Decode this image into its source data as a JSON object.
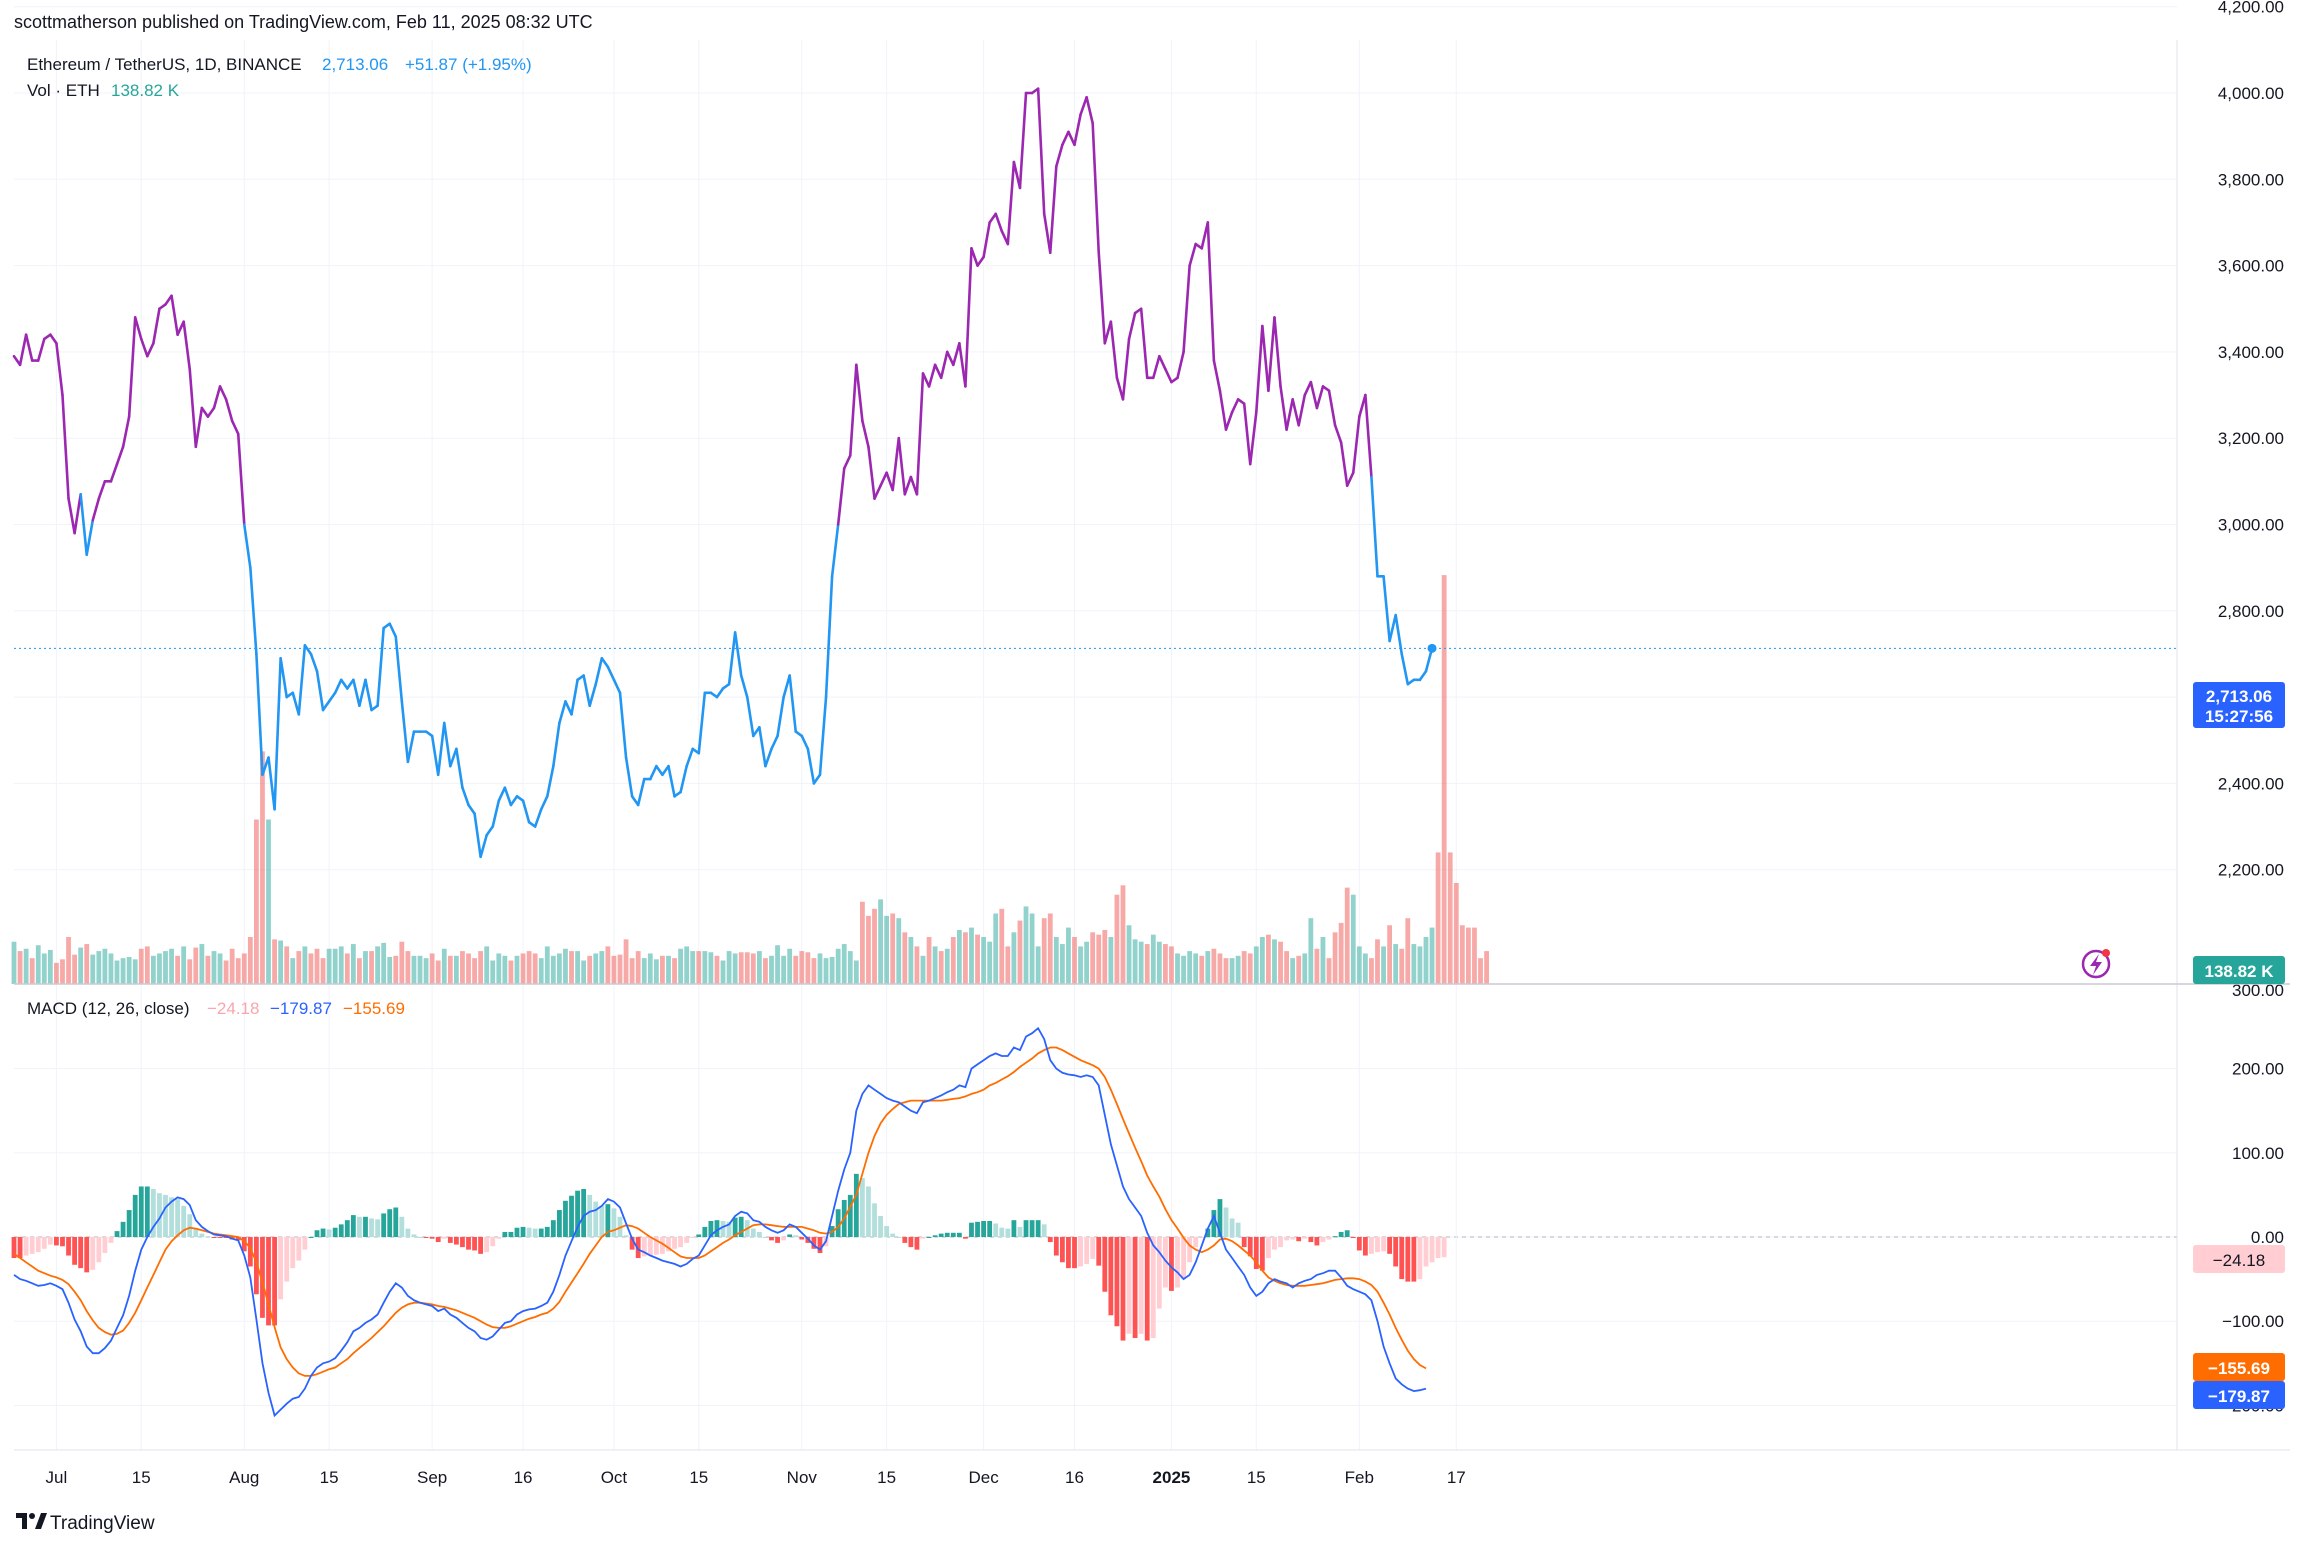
{
  "header": {
    "published": "scottmatherson published on TradingView.com, Feb 11, 2025 08:32 UTC",
    "symbol": "Ethereum / TetherUS, 1D, BINANCE",
    "last": "2,713.06",
    "change": "+51.87 (+1.95%)",
    "vol_label": "Vol · ETH",
    "vol_value": "138.82 K"
  },
  "macd_legend": {
    "label": "MACD (12, 26, close)",
    "hist": "−24.18",
    "macd": "−179.87",
    "signal": "−155.69"
  },
  "price_badge": {
    "price": "2,713.06",
    "countdown": "15:27:56"
  },
  "vol_badge": "138.82 K",
  "macd_badges": {
    "hist": "−24.18",
    "signal": "−155.69",
    "macd": "−179.87"
  },
  "footer": {
    "brand": "TradingView"
  },
  "colors": {
    "up": "#26a69a",
    "down": "#ef5350",
    "line_low": "#2196f3",
    "line_high": "#9c27b0",
    "macd": "#2962ff",
    "signal": "#ff6d00",
    "hist_pos": "#26a69a",
    "hist_pos_light": "#b2dfdb",
    "hist_neg": "#ff5252",
    "hist_neg_light": "#ffcdd2"
  },
  "chart_data": {
    "type": "line",
    "start_date": "2024-06-24",
    "y_ticks": [
      2200,
      2400,
      2600,
      2800,
      3000,
      3200,
      3400,
      3600,
      3800,
      4000,
      4200
    ],
    "y_tick_labels": [
      "2,200.00",
      "2,400.00",
      "2,600.00",
      "2,800.00",
      "3,000.00",
      "3,200.00",
      "3,400.00",
      "3,600.00",
      "3,800.00",
      "4,000.00",
      "4,200.00"
    ],
    "macd_ticks": [
      -200,
      -100,
      0,
      100,
      200,
      300
    ],
    "macd_tick_labels": [
      "−200.00",
      "−100.00",
      "0.00",
      "100.00",
      "200.00",
      "300.00"
    ],
    "x_ticks": [
      {
        "label": "Jul",
        "date": "2024-07-01"
      },
      {
        "label": "15",
        "date": "2024-07-15"
      },
      {
        "label": "Aug",
        "date": "2024-08-01"
      },
      {
        "label": "15",
        "date": "2024-08-15"
      },
      {
        "label": "Sep",
        "date": "2024-09-01"
      },
      {
        "label": "16",
        "date": "2024-09-16"
      },
      {
        "label": "Oct",
        "date": "2024-10-01"
      },
      {
        "label": "15",
        "date": "2024-10-15"
      },
      {
        "label": "Nov",
        "date": "2024-11-01"
      },
      {
        "label": "15",
        "date": "2024-11-15"
      },
      {
        "label": "Dec",
        "date": "2024-12-01"
      },
      {
        "label": "16",
        "date": "2024-12-16"
      },
      {
        "label": "2025",
        "date": "2025-01-01"
      },
      {
        "label": "15",
        "date": "2025-01-15"
      },
      {
        "label": "Feb",
        "date": "2025-02-01"
      },
      {
        "label": "17",
        "date": "2025-02-17"
      }
    ],
    "series": [
      {
        "name": "Ethereum / TetherUS",
        "values": [
          3390,
          3370,
          3440,
          3380,
          3380,
          3430,
          3440,
          3420,
          3300,
          3060,
          2980,
          3070,
          2930,
          3010,
          3060,
          3100,
          3100,
          3140,
          3180,
          3250,
          3480,
          3430,
          3390,
          3420,
          3500,
          3510,
          3530,
          3440,
          3470,
          3360,
          3180,
          3270,
          3250,
          3270,
          3320,
          3290,
          3240,
          3210,
          3000,
          2900,
          2700,
          2420,
          2460,
          2340,
          2690,
          2600,
          2610,
          2560,
          2720,
          2700,
          2660,
          2570,
          2590,
          2610,
          2640,
          2620,
          2640,
          2580,
          2640,
          2570,
          2580,
          2760,
          2770,
          2740,
          2590,
          2450,
          2520,
          2520,
          2520,
          2510,
          2420,
          2540,
          2440,
          2480,
          2390,
          2350,
          2330,
          2230,
          2280,
          2300,
          2360,
          2390,
          2350,
          2370,
          2360,
          2310,
          2300,
          2340,
          2370,
          2440,
          2540,
          2590,
          2560,
          2640,
          2650,
          2580,
          2630,
          2690,
          2670,
          2640,
          2610,
          2460,
          2370,
          2350,
          2410,
          2410,
          2440,
          2420,
          2440,
          2370,
          2380,
          2440,
          2480,
          2470,
          2610,
          2610,
          2600,
          2620,
          2630,
          2750,
          2650,
          2600,
          2510,
          2530,
          2440,
          2480,
          2510,
          2600,
          2650,
          2520,
          2510,
          2480,
          2400,
          2420,
          2600,
          2880,
          3000,
          3130,
          3160,
          3370,
          3240,
          3180,
          3060,
          3090,
          3120,
          3080,
          3200,
          3070,
          3110,
          3070,
          3350,
          3320,
          3370,
          3340,
          3400,
          3370,
          3420,
          3320,
          3640,
          3600,
          3620,
          3700,
          3720,
          3680,
          3650,
          3840,
          3780,
          4000,
          4000,
          4010,
          3720,
          3630,
          3830,
          3880,
          3910,
          3880,
          3950,
          3990,
          3930,
          3630,
          3420,
          3470,
          3340,
          3290,
          3430,
          3490,
          3500,
          3340,
          3340,
          3390,
          3360,
          3330,
          3340,
          3400,
          3600,
          3650,
          3640,
          3700,
          3380,
          3310,
          3220,
          3260,
          3290,
          3280,
          3140,
          3260,
          3460,
          3310,
          3480,
          3320,
          3220,
          3290,
          3230,
          3300,
          3330,
          3270,
          3320,
          3310,
          3230,
          3190,
          3090,
          3120,
          3250,
          3300,
          3110,
          2880,
          2880,
          2730,
          2790,
          2700,
          2630,
          2640,
          2640,
          2660,
          2713
        ]
      }
    ],
    "volume": {
      "unit": "K ETH",
      "values": [
        180,
        140,
        150,
        110,
        165,
        130,
        145,
        90,
        105,
        200,
        125,
        155,
        170,
        125,
        140,
        150,
        130,
        100,
        110,
        115,
        105,
        150,
        160,
        120,
        130,
        140,
        150,
        120,
        160,
        105,
        155,
        170,
        120,
        140,
        130,
        100,
        150,
        110,
        130,
        200,
        700,
        990,
        700,
        190,
        185,
        160,
        110,
        140,
        160,
        130,
        150,
        110,
        150,
        150,
        160,
        130,
        170,
        110,
        140,
        140,
        160,
        175,
        115,
        120,
        180,
        140,
        120,
        120,
        110,
        130,
        100,
        150,
        120,
        120,
        140,
        130,
        110,
        140,
        160,
        100,
        130,
        120,
        100,
        120,
        130,
        140,
        130,
        110,
        160,
        120,
        130,
        150,
        140,
        140,
        100,
        120,
        130,
        140,
        160,
        120,
        125,
        190,
        110,
        140,
        110,
        130,
        105,
        120,
        120,
        110,
        150,
        160,
        140,
        140,
        140,
        135,
        120,
        100,
        140,
        130,
        135,
        135,
        130,
        140,
        110,
        120,
        165,
        120,
        150,
        120,
        140,
        135,
        110,
        130,
        110,
        115,
        150,
        170,
        140,
        100,
        350,
        290,
        320,
        360,
        290,
        300,
        280,
        220,
        200,
        160,
        120,
        200,
        160,
        140,
        150,
        200,
        230,
        220,
        240,
        210,
        200,
        180,
        300,
        320,
        160,
        220,
        270,
        330,
        300,
        160,
        280,
        300,
        200,
        170,
        240,
        200,
        160,
        180,
        220,
        210,
        230,
        200,
        380,
        420,
        250,
        190,
        180,
        170,
        210,
        180,
        170,
        160,
        130,
        120,
        140,
        130,
        120,
        140,
        150,
        130,
        110,
        110,
        120,
        140,
        130,
        160,
        200,
        210,
        190,
        180,
        140,
        110,
        120,
        130,
        280,
        150,
        200,
        110,
        220,
        260,
        410,
        380,
        160,
        130,
        110,
        190,
        160,
        250,
        170,
        150,
        280,
        170,
        160,
        200,
        240,
        560,
        1740,
        560,
        430,
        250,
        240,
        240,
        110,
        140
      ]
    },
    "macd": [
      -45,
      -50,
      -52,
      -55,
      -58,
      -57,
      -55,
      -58,
      -62,
      -78,
      -98,
      -112,
      -130,
      -138,
      -138,
      -132,
      -123,
      -108,
      -93,
      -70,
      -40,
      -15,
      0,
      12,
      22,
      35,
      42,
      47,
      45,
      38,
      20,
      12,
      7,
      3,
      2,
      1,
      -2,
      -4,
      -22,
      -48,
      -98,
      -150,
      -185,
      -212,
      -205,
      -198,
      -192,
      -190,
      -180,
      -165,
      -155,
      -150,
      -148,
      -144,
      -135,
      -125,
      -112,
      -108,
      -102,
      -98,
      -92,
      -78,
      -65,
      -55,
      -60,
      -70,
      -75,
      -78,
      -80,
      -82,
      -88,
      -85,
      -92,
      -96,
      -102,
      -108,
      -112,
      -120,
      -122,
      -118,
      -110,
      -102,
      -100,
      -92,
      -88,
      -86,
      -85,
      -82,
      -78,
      -65,
      -45,
      -22,
      -5,
      12,
      25,
      30,
      32,
      37,
      45,
      42,
      35,
      16,
      -2,
      -15,
      -18,
      -22,
      -25,
      -28,
      -30,
      -32,
      -35,
      -32,
      -26,
      -22,
      -10,
      2,
      8,
      12,
      15,
      25,
      30,
      28,
      20,
      18,
      12,
      8,
      5,
      8,
      15,
      12,
      5,
      -2,
      -10,
      -15,
      -5,
      25,
      55,
      80,
      100,
      150,
      170,
      180,
      175,
      170,
      165,
      162,
      160,
      155,
      150,
      147,
      160,
      162,
      165,
      168,
      172,
      175,
      180,
      178,
      200,
      205,
      210,
      215,
      218,
      215,
      215,
      225,
      222,
      238,
      242,
      248,
      235,
      210,
      200,
      195,
      193,
      192,
      190,
      192,
      190,
      180,
      145,
      110,
      85,
      60,
      45,
      35,
      25,
      5,
      -10,
      -18,
      -28,
      -36,
      -42,
      -50,
      -45,
      -30,
      -10,
      10,
      25,
      5,
      -15,
      -25,
      -35,
      -45,
      -60,
      -70,
      -65,
      -55,
      -50,
      -53,
      -55,
      -60,
      -55,
      -52,
      -50,
      -45,
      -43,
      -40,
      -40,
      -48,
      -58,
      -62,
      -65,
      -68,
      -75,
      -100,
      -130,
      -150,
      -168,
      -175,
      -180,
      -183,
      -182,
      -180
    ],
    "signal": [
      -20,
      -25,
      -30,
      -35,
      -40,
      -43,
      -46,
      -48,
      -51,
      -56,
      -65,
      -75,
      -88,
      -99,
      -108,
      -113,
      -116,
      -115,
      -111,
      -102,
      -90,
      -75,
      -60,
      -45,
      -30,
      -15,
      -5,
      2,
      8,
      11,
      10,
      8,
      6,
      4,
      3,
      2,
      1,
      0,
      -5,
      -13,
      -30,
      -54,
      -80,
      -107,
      -131,
      -145,
      -155,
      -162,
      -165,
      -165,
      -163,
      -160,
      -157,
      -155,
      -150,
      -145,
      -138,
      -132,
      -126,
      -120,
      -113,
      -106,
      -98,
      -90,
      -84,
      -80,
      -78,
      -78,
      -79,
      -80,
      -82,
      -83,
      -85,
      -87,
      -90,
      -93,
      -96,
      -100,
      -104,
      -107,
      -108,
      -108,
      -106,
      -103,
      -100,
      -97,
      -95,
      -92,
      -90,
      -85,
      -77,
      -65,
      -54,
      -43,
      -32,
      -20,
      -10,
      0,
      6,
      8,
      11,
      14,
      13,
      10,
      5,
      0,
      -4,
      -8,
      -13,
      -18,
      -23,
      -25,
      -25,
      -25,
      -22,
      -17,
      -12,
      -7,
      -3,
      2,
      6,
      10,
      14,
      15,
      15,
      14,
      13,
      12,
      12,
      12,
      12,
      10,
      8,
      5,
      4,
      6,
      12,
      22,
      36,
      50,
      75,
      100,
      120,
      135,
      145,
      152,
      158,
      160,
      162,
      162,
      162,
      162,
      162,
      162,
      163,
      164,
      165,
      167,
      170,
      172,
      175,
      180,
      183,
      187,
      191,
      196,
      202,
      207,
      212,
      218,
      222,
      225,
      225,
      222,
      218,
      214,
      210,
      207,
      204,
      200,
      190,
      175,
      158,
      140,
      123,
      106,
      90,
      73,
      60,
      48,
      33,
      20,
      10,
      -1,
      -10,
      -15,
      -18,
      -15,
      -10,
      -3,
      -2,
      -5,
      -10,
      -16,
      -22,
      -30,
      -40,
      -48,
      -52,
      -55,
      -57,
      -58,
      -58,
      -58,
      -57,
      -56,
      -55,
      -53,
      -51,
      -50,
      -49,
      -49,
      -50,
      -53,
      -57,
      -65,
      -78,
      -92,
      -108,
      -122,
      -135,
      -145,
      -152,
      -156
    ],
    "histogram": [
      -25,
      -25,
      -22,
      -20,
      -18,
      -14,
      -9,
      -10,
      -11,
      -22,
      -33,
      -37,
      -42,
      -39,
      -30,
      -19,
      -7,
      7,
      18,
      32,
      50,
      60,
      60,
      57,
      52,
      50,
      47,
      45,
      37,
      27,
      10,
      4,
      1,
      -1,
      -1,
      -1,
      -3,
      -4,
      -17,
      -35,
      -68,
      -96,
      -105,
      -105,
      -74,
      -53,
      -37,
      -28,
      -15,
      0,
      8,
      10,
      9,
      11,
      15,
      20,
      26,
      24,
      24,
      22,
      21,
      28,
      33,
      35,
      24,
      10,
      3,
      0,
      -1,
      -2,
      -6,
      -2,
      -7,
      -9,
      -12,
      -15,
      -16,
      -20,
      -18,
      -11,
      -2,
      6,
      6,
      11,
      12,
      11,
      10,
      10,
      12,
      20,
      32,
      43,
      49,
      55,
      57,
      50,
      42,
      37,
      39,
      34,
      24,
      2,
      -15,
      -25,
      -23,
      -22,
      -21,
      -20,
      -17,
      -14,
      -12,
      -7,
      -1,
      3,
      12,
      19,
      20,
      19,
      18,
      23,
      24,
      20,
      10,
      6,
      0,
      -4,
      -7,
      -4,
      3,
      2,
      -3,
      -7,
      -14,
      -19,
      -11,
      13,
      33,
      44,
      50,
      75,
      70,
      60,
      40,
      25,
      13,
      4,
      0,
      -7,
      -12,
      -15,
      -2,
      0,
      2,
      4,
      5,
      5,
      5,
      -2,
      17,
      18,
      19,
      19,
      16,
      11,
      10,
      20,
      12,
      20,
      20,
      20,
      15,
      -6,
      -22,
      -30,
      -37,
      -37,
      -35,
      -32,
      -26,
      -34,
      -65,
      -93,
      -106,
      -123,
      -115,
      -120,
      -115,
      -123,
      -120,
      -85,
      -60,
      -64,
      -60,
      -50,
      -30,
      -12,
      -1,
      10,
      32,
      45,
      35,
      22,
      17,
      -12,
      -23,
      -38,
      -40,
      -25,
      -15,
      -12,
      -4,
      -3,
      -5,
      -2,
      -6,
      -10,
      -6,
      -3,
      1,
      6,
      8,
      -1,
      -16,
      -22,
      -20,
      -18,
      -17,
      -20,
      -35,
      -50,
      -53,
      -53,
      -50,
      -35,
      -30,
      -25,
      -24
    ]
  }
}
